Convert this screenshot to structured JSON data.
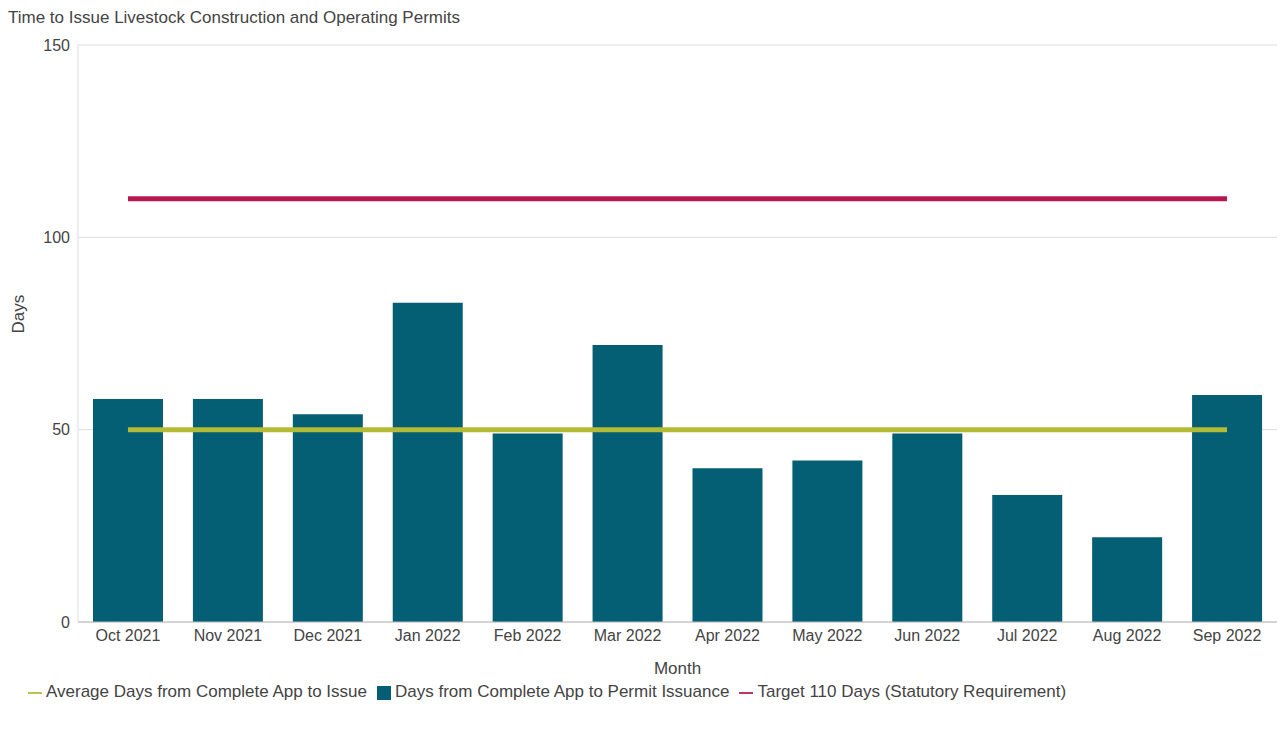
{
  "chart_data": {
    "type": "bar",
    "title": "Time to Issue Livestock Construction and Operating Permits",
    "x_label": "Month",
    "y_label": "Days",
    "categories": [
      "Oct 2021",
      "Nov 2021",
      "Dec 2021",
      "Jan 2022",
      "Feb 2022",
      "Mar 2022",
      "Apr 2022",
      "May 2022",
      "Jun 2022",
      "Jul 2022",
      "Aug 2022",
      "Sep 2022"
    ],
    "series": [
      {
        "name": "Days from Complete App to Permit Issuance",
        "type": "bar",
        "color": "#045e74",
        "values": [
          58,
          58,
          54,
          83,
          49,
          72,
          40,
          42,
          49,
          33,
          22,
          59
        ]
      },
      {
        "name": "Average Days from Complete App to Issue",
        "type": "line",
        "color": "#b3bb35",
        "values": [
          50,
          50,
          50,
          50,
          50,
          50,
          50,
          50,
          50,
          50,
          50,
          50
        ]
      },
      {
        "name": "Target 110 Days (Statutory Requirement)",
        "type": "line",
        "color": "#b5174f",
        "values": [
          110,
          110,
          110,
          110,
          110,
          110,
          110,
          110,
          110,
          110,
          110,
          110
        ]
      }
    ],
    "ylim": [
      0,
      150
    ],
    "yticks": [
      0,
      50,
      100,
      150
    ],
    "grid": true,
    "legend": "bottom"
  }
}
